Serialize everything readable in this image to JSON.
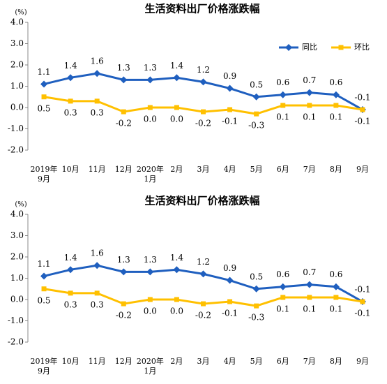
{
  "chart_data": [
    {
      "type": "line",
      "title": "生活资料出厂价格涨跌幅",
      "ylabel": "(%)",
      "categories": [
        "2019年\n9月",
        "10月",
        "11月",
        "12月",
        "2020年\n1月",
        "2月",
        "3月",
        "4月",
        "5月",
        "6月",
        "7月",
        "8月",
        "9月"
      ],
      "series": [
        {
          "name": "同比",
          "color": "#1f5fbf",
          "marker": "diamond",
          "values": [
            1.1,
            1.4,
            1.6,
            1.3,
            1.3,
            1.4,
            1.2,
            0.9,
            0.5,
            0.6,
            0.7,
            0.6,
            -0.1
          ],
          "value_labels": [
            "1.1",
            "1.4",
            "1.6",
            "1.3",
            "1.3",
            "1.4",
            "1.2",
            "0.9",
            "0.5",
            "0.6",
            "0.7",
            "0.6",
            "-0.1"
          ]
        },
        {
          "name": "环比",
          "color": "#ffc000",
          "marker": "square",
          "values": [
            0.5,
            0.3,
            0.3,
            -0.2,
            0.0,
            0.0,
            -0.2,
            -0.1,
            -0.3,
            0.1,
            0.1,
            0.1,
            -0.1
          ],
          "value_labels": [
            "0.5",
            "0.3",
            "0.3",
            "-0.2",
            "0.0",
            "0.0",
            "-0.2",
            "-0.1",
            "-0.3",
            "0.1",
            "0.1",
            "0.1",
            "-0.1"
          ]
        }
      ],
      "ylim": [
        -2.0,
        4.0
      ],
      "yticks": [
        {
          "value": -2,
          "label": "-2.0"
        },
        {
          "value": -1,
          "label": "-1.0"
        },
        {
          "value": 0,
          "label": "0.0"
        },
        {
          "value": 1,
          "label": "1.0"
        },
        {
          "value": 2,
          "label": "2.0"
        },
        {
          "value": 3,
          "label": "3.0"
        },
        {
          "value": 4,
          "label": "4.0"
        }
      ],
      "grid": false,
      "legend": "upper right"
    },
    {
      "type": "line",
      "title": "生活资料出厂价格涨跌幅",
      "ylabel": "(%)",
      "categories": [
        "2019年\n9月",
        "10月",
        "11月",
        "12月",
        "2020年\n1月",
        "2月",
        "3月",
        "4月",
        "5月",
        "6月",
        "7月",
        "8月",
        "9月"
      ],
      "series": [
        {
          "name": "同比",
          "color": "#1f5fbf",
          "marker": "diamond",
          "values": [
            1.1,
            1.4,
            1.6,
            1.3,
            1.3,
            1.4,
            1.2,
            0.9,
            0.5,
            0.6,
            0.7,
            0.6,
            -0.1
          ],
          "value_labels": [
            "1.1",
            "1.4",
            "1.6",
            "1.3",
            "1.3",
            "1.4",
            "1.2",
            "0.9",
            "0.5",
            "0.6",
            "0.7",
            "0.6",
            "-0.1"
          ]
        },
        {
          "name": "环比",
          "color": "#ffc000",
          "marker": "square",
          "values": [
            0.5,
            0.3,
            0.3,
            -0.2,
            0.0,
            0.0,
            -0.2,
            -0.1,
            -0.3,
            0.1,
            0.1,
            0.1,
            -0.1
          ],
          "value_labels": [
            "0.5",
            "0.3",
            "0.3",
            "-0.2",
            "0.0",
            "0.0",
            "-0.2",
            "-0.1",
            "-0.3",
            "0.1",
            "0.1",
            "0.1",
            "-0.1"
          ]
        }
      ],
      "ylim": [
        -2.0,
        4.0
      ],
      "yticks": [
        {
          "value": -2,
          "label": "-2.0"
        },
        {
          "value": -1,
          "label": "-1.0"
        },
        {
          "value": 0,
          "label": "0.0"
        },
        {
          "value": 1,
          "label": "1.0"
        },
        {
          "value": 2,
          "label": "2.0"
        },
        {
          "value": 3,
          "label": "3.0"
        },
        {
          "value": 4,
          "label": "4.0"
        }
      ],
      "grid": false
    }
  ]
}
